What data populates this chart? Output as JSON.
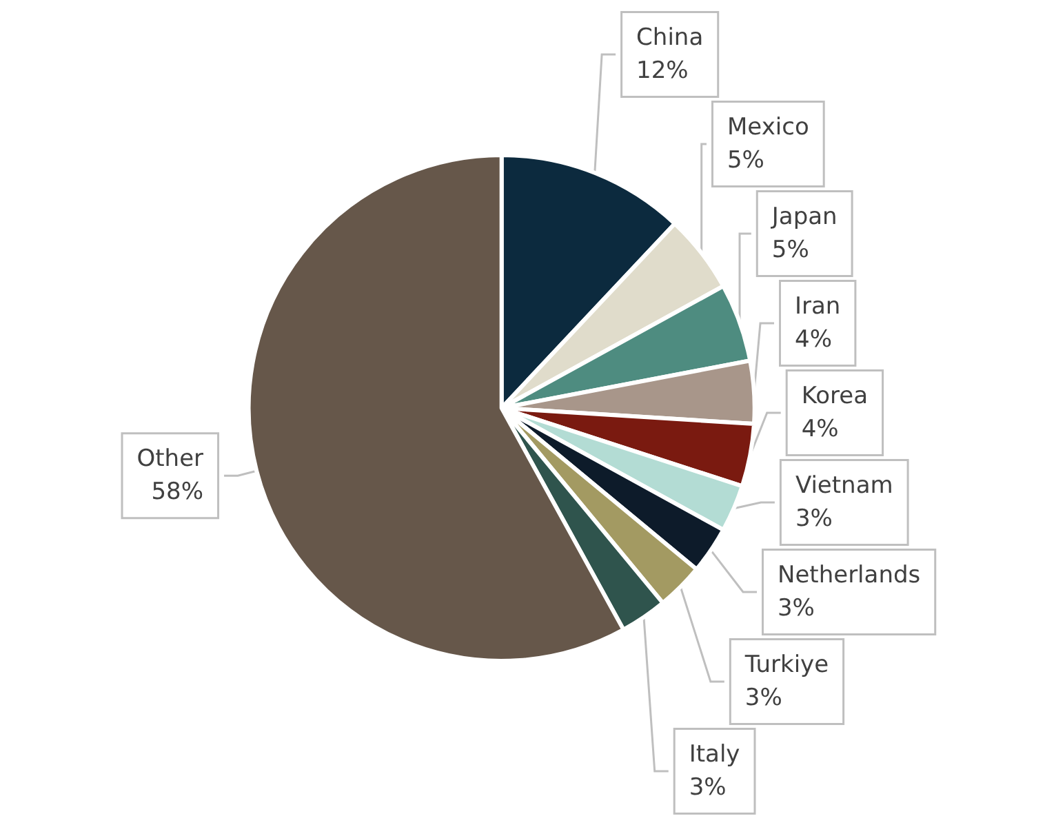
{
  "chart_data": {
    "type": "pie",
    "categories": [
      "China",
      "Mexico",
      "Japan",
      "Iran",
      "Korea",
      "Vietnam",
      "Netherlands",
      "Turkiye",
      "Italy",
      "Other"
    ],
    "values": [
      12,
      5,
      5,
      4,
      4,
      3,
      3,
      3,
      3,
      58
    ],
    "colors": [
      "#0c2a3e",
      "#e0dccb",
      "#4e8c80",
      "#a8968a",
      "#7a1a10",
      "#b3dcd4",
      "#0d1b2a",
      "#a39a62",
      "#2f544d",
      "#66574a"
    ],
    "value_labels": [
      "12%",
      "5%",
      "5%",
      "4%",
      "4%",
      "3%",
      "3%",
      "3%",
      "3%",
      "58%"
    ],
    "legend": false
  }
}
